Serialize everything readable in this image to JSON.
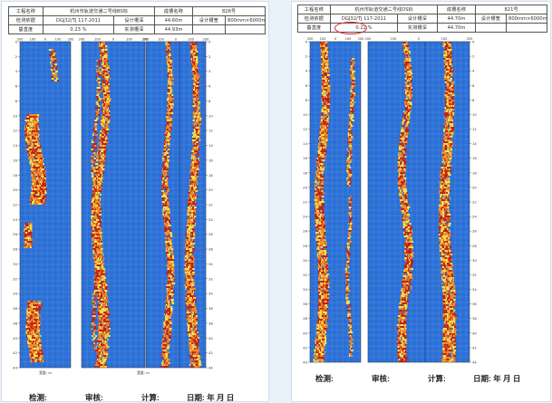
{
  "left": {
    "header": {
      "project_label": "工程名称",
      "project_value": "杭州市轨道交通二号线BS标",
      "pile_label": "成槽名称",
      "pile_value": "826号",
      "standard_label": "检测依据",
      "standard_value": "DGJ32/TJ 117-2011",
      "design_depth_label": "设计槽深",
      "design_depth_value": "44.60m",
      "design_width_label": "设计槽宽",
      "design_width_value": "800mm×6000mm",
      "verticality_label": "垂直度",
      "verticality_value": "0.23 %",
      "measured_depth_label": "实测槽深",
      "measured_depth_value": "44.93m"
    },
    "footer": {
      "inspect": "检测:",
      "review": "审核:",
      "calc": "计算:",
      "date": "日期: 年    月    日"
    }
  },
  "right": {
    "header": {
      "project_label": "工程名称",
      "project_value": "杭州市轨道交通二号线DS标",
      "pile_label": "成槽名称",
      "pile_value": "821号",
      "standard_label": "检测依据",
      "standard_value": "DGJ32/TJ 117-2011",
      "design_depth_label": "设计槽深",
      "design_depth_value": "44.70m",
      "design_width_label": "设计槽宽",
      "design_width_value": "800mm×6000mm",
      "verticality_label": "垂直度",
      "verticality_value": "0.22 %",
      "measured_depth_label": "实测槽深",
      "measured_depth_value": "44.70m"
    },
    "footer": {
      "inspect": "检测:",
      "review": "审核:",
      "calc": "计算:",
      "date": "日期: 年    月    日"
    }
  },
  "chart": {
    "depth_ticks": [
      "0",
      "2",
      "4",
      "6",
      "8",
      "10",
      "12",
      "14",
      "16",
      "18",
      "20",
      "22",
      "24",
      "26",
      "28",
      "30",
      "32",
      "34",
      "36",
      "38",
      "40",
      "42",
      "44"
    ],
    "top_ticks": [
      "200",
      "100",
      "0",
      "100",
      "200"
    ],
    "panel_caption": "宽度: m",
    "colors": {
      "background": "#2a6fd6",
      "grid": "#6f9ee8",
      "echo_low": "#f2e34a",
      "echo_mid": "#f08a24",
      "echo_high": "#c81e14"
    }
  }
}
